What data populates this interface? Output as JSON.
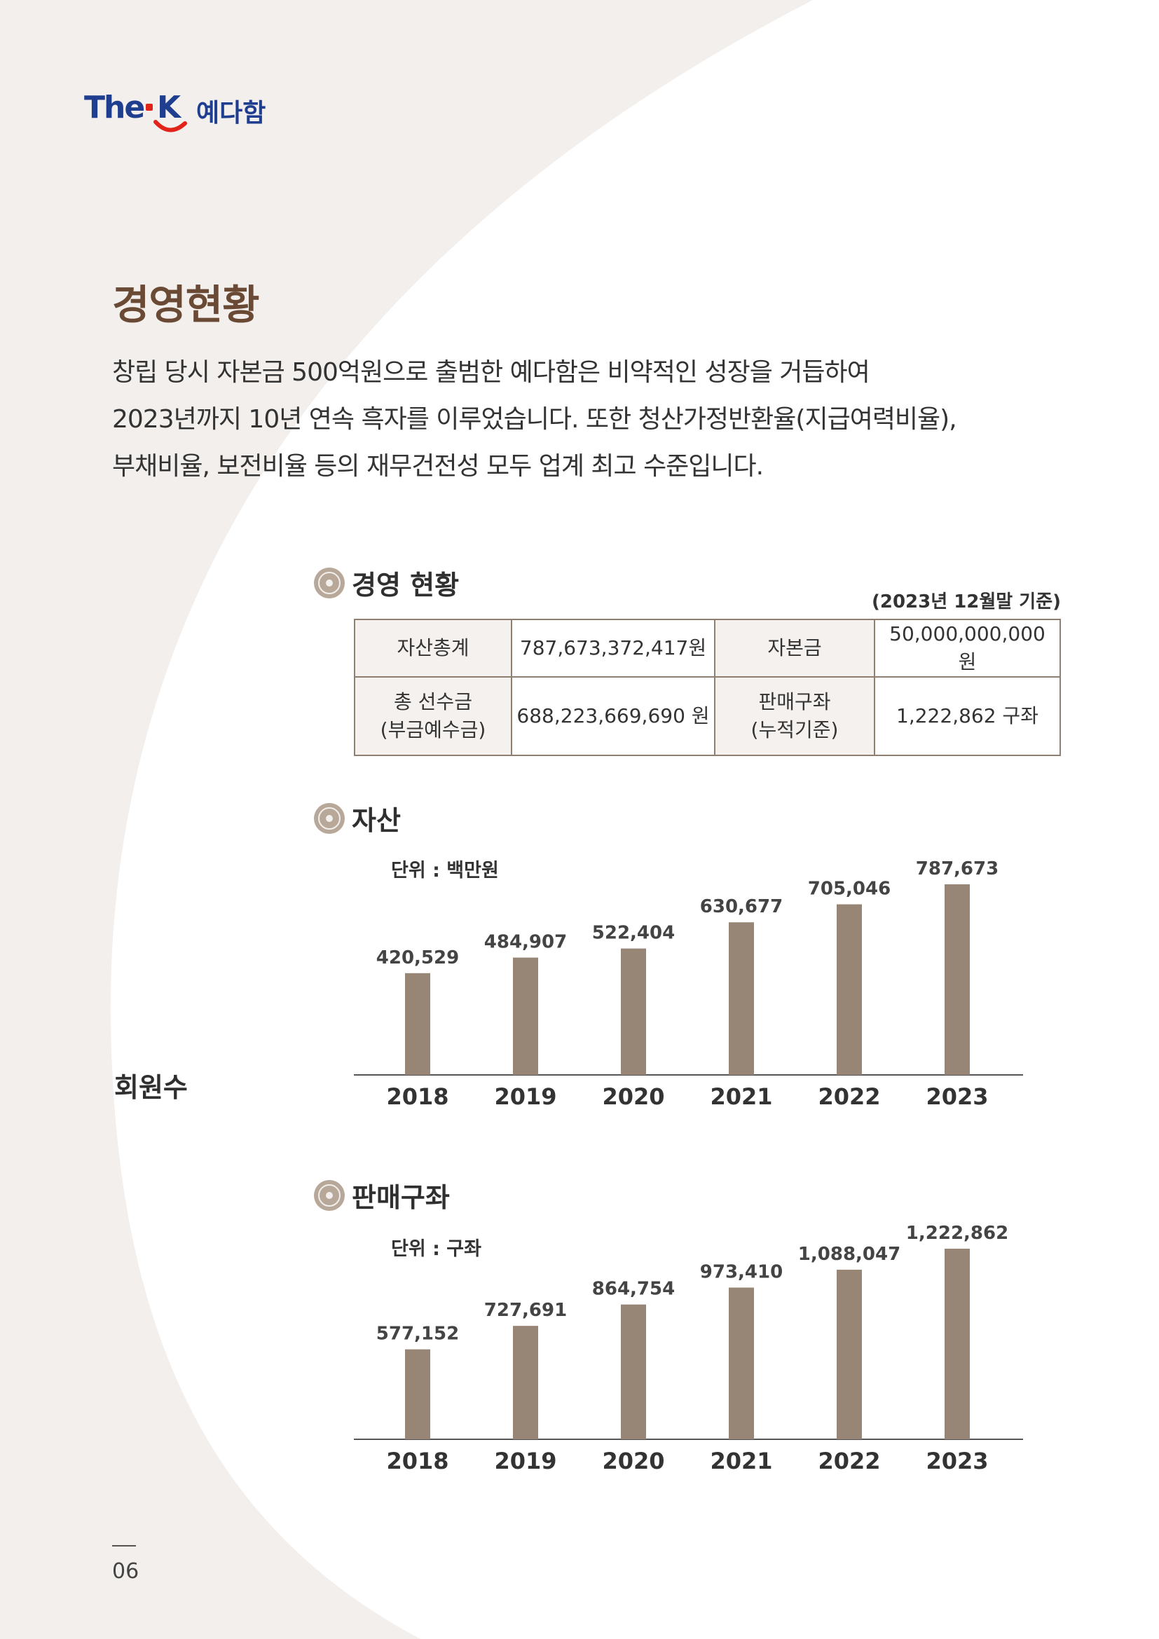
{
  "logo": {
    "brand": "The",
    "k": "K",
    "name": "예다함"
  },
  "page_heading": "경영현황",
  "intro_lines": [
    "창립 당시 자본금 500억원으로 출범한 예다함은 비약적인 성장을 거듭하여",
    "2023년까지 10년 연속 흑자를 이루었습니다. 또한 청산가정반환율(지급여력비율),",
    "부채비율, 보전비율 등의 재무건전성 모두 업계 최고 수준입니다."
  ],
  "section_status": {
    "title": "경영 현황",
    "basis": "(2023년 12월말 기준)",
    "rows": [
      [
        "자산총계",
        "787,673,372,417원",
        "자본금",
        "50,000,000,000 원"
      ],
      [
        "총 선수금\n(부금예수금)",
        "688,223,669,690 원",
        "판매구좌\n(누적기준)",
        "1,222,862 구좌"
      ]
    ]
  },
  "side_label": "회원수",
  "section_assets": {
    "title": "자산",
    "unit": "단위 : 백만원"
  },
  "section_sales": {
    "title": "판매구좌",
    "unit": "단위 : 구좌"
  },
  "page_number": "06",
  "colors": {
    "bar": "#978676",
    "heading": "#6a4a35",
    "background_shape": "#f2efec",
    "logo_blue": "#1f3e8f",
    "logo_red": "#e2231a"
  },
  "chart_data": [
    {
      "type": "bar",
      "title": "자산",
      "unit": "단위 : 백만원",
      "categories": [
        "2018",
        "2019",
        "2020",
        "2021",
        "2022",
        "2023"
      ],
      "values": [
        420529,
        484907,
        522404,
        630677,
        705046,
        787673
      ],
      "labels": [
        "420,529",
        "484,907",
        "522,404",
        "630,677",
        "705,046",
        "787,673"
      ],
      "ylim": [
        0,
        787673
      ],
      "grid": false
    },
    {
      "type": "bar",
      "title": "판매구좌",
      "unit": "단위 : 구좌",
      "categories": [
        "2018",
        "2019",
        "2020",
        "2021",
        "2022",
        "2023"
      ],
      "values": [
        577152,
        727691,
        864754,
        973410,
        1088047,
        1222862
      ],
      "labels": [
        "577,152",
        "727,691",
        "864,754",
        "973,410",
        "1,088,047",
        "1,222,862"
      ],
      "ylim": [
        0,
        1222862
      ],
      "grid": false
    }
  ]
}
